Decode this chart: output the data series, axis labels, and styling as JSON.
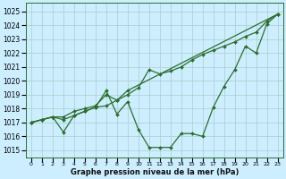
{
  "xlabel": "Graphe pression niveau de la mer (hPa)",
  "background_color": "#cceeff",
  "grid_color": "#aacccc",
  "line_color": "#2d6e2d",
  "ylim_min": 1014.5,
  "ylim_max": 1025.6,
  "yticks": [
    1015,
    1016,
    1017,
    1018,
    1019,
    1020,
    1021,
    1022,
    1023,
    1024,
    1025
  ],
  "xticks": [
    0,
    1,
    2,
    3,
    4,
    5,
    6,
    7,
    8,
    9,
    10,
    11,
    12,
    13,
    14,
    15,
    16,
    17,
    18,
    19,
    20,
    21,
    22,
    23
  ],
  "line1_x": [
    0,
    1,
    2,
    3,
    4,
    5,
    6,
    7,
    8,
    9,
    10,
    11,
    12,
    13,
    14,
    15,
    16,
    17,
    18,
    19,
    20,
    21,
    22,
    23
  ],
  "line1_y": [
    1017.0,
    1017.2,
    1017.4,
    1016.3,
    1017.5,
    1017.8,
    1018.1,
    1019.3,
    1017.6,
    1018.5,
    1016.5,
    1015.2,
    1015.2,
    1015.2,
    1016.2,
    1016.2,
    1016.0,
    1018.1,
    1019.6,
    1020.8,
    1022.5,
    1022.0,
    1024.1,
    1024.8
  ],
  "line2_x": [
    0,
    1,
    2,
    3,
    4,
    5,
    6,
    7,
    8,
    9,
    10,
    11,
    12,
    13,
    14,
    15,
    16,
    17,
    18,
    19,
    20,
    21,
    22,
    23
  ],
  "line2_y": [
    1017.0,
    1017.2,
    1017.4,
    1017.4,
    1017.8,
    1018.0,
    1018.2,
    1019.0,
    1018.6,
    1019.0,
    1019.5,
    1020.8,
    1020.5,
    1020.7,
    1021.0,
    1021.5,
    1021.9,
    1022.2,
    1022.5,
    1022.8,
    1023.2,
    1023.5,
    1024.3,
    1024.8
  ],
  "line3_x": [
    0,
    1,
    2,
    3,
    4,
    5,
    6,
    7,
    8,
    9,
    23
  ],
  "line3_y": [
    1017.0,
    1017.2,
    1017.4,
    1017.2,
    1017.5,
    1017.8,
    1018.1,
    1018.2,
    1018.6,
    1019.3,
    1024.8
  ]
}
